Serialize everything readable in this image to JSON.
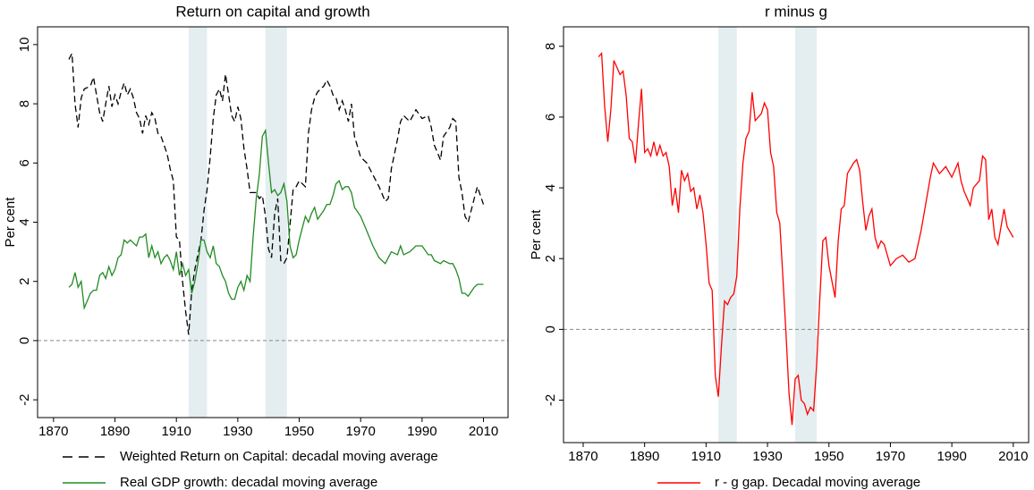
{
  "chart_data": [
    {
      "type": "line",
      "title": "Return on capital and growth",
      "ylabel": "Per cent",
      "xlim": [
        1864.8,
        2018
      ],
      "ylim": [
        -2.6,
        10.6
      ],
      "xticks": [
        1870,
        1890,
        1910,
        1930,
        1950,
        1970,
        1990,
        2010
      ],
      "yticks": [
        -2,
        0,
        2,
        4,
        6,
        8,
        10
      ],
      "reference_line": 0,
      "shaded_periods": [
        [
          1914,
          1920
        ],
        [
          1939,
          1946
        ]
      ],
      "shade_color": "#e4edf0",
      "x": [
        1875,
        1876,
        1877,
        1878,
        1879,
        1880,
        1882,
        1883,
        1884,
        1885,
        1886,
        1887,
        1888,
        1889,
        1890,
        1891,
        1892,
        1893,
        1894,
        1895,
        1896,
        1897,
        1898,
        1899,
        1900,
        1901,
        1902,
        1903,
        1904,
        1905,
        1906,
        1907,
        1908,
        1909,
        1910,
        1911,
        1912,
        1913,
        1914,
        1915,
        1916,
        1917,
        1918,
        1919,
        1920,
        1921,
        1922,
        1923,
        1924,
        1925,
        1926,
        1927,
        1928,
        1929,
        1930,
        1931,
        1932,
        1933,
        1934,
        1935,
        1936,
        1937,
        1938,
        1939,
        1940,
        1941,
        1942,
        1943,
        1944,
        1945,
        1946,
        1947,
        1948,
        1949,
        1950,
        1952,
        1953,
        1954,
        1955,
        1956,
        1958,
        1959,
        1960,
        1961,
        1962,
        1963,
        1964,
        1965,
        1966,
        1967,
        1968,
        1970,
        1972,
        1974,
        1976,
        1978,
        1979,
        1980,
        1982,
        1983,
        1984,
        1986,
        1988,
        1990,
        1992,
        1993,
        1994,
        1996,
        1997,
        1999,
        2000,
        2001,
        2002,
        2003,
        2004,
        2005,
        2007,
        2008,
        2010
      ],
      "series": [
        {
          "name": "Weighted Return on Capital: decadal moving average",
          "color": "#000000",
          "dash": "dashed",
          "values": [
            9.5,
            9.7,
            8.0,
            7.2,
            8.2,
            8.5,
            8.6,
            8.9,
            8.3,
            7.7,
            7.4,
            8.0,
            8.6,
            7.9,
            8.3,
            8.0,
            8.4,
            8.7,
            8.3,
            8.5,
            8.2,
            7.7,
            7.5,
            7.0,
            7.6,
            7.3,
            7.7,
            7.5,
            7.0,
            6.9,
            6.6,
            6.3,
            5.8,
            5.4,
            3.5,
            3.4,
            2.0,
            1.0,
            0.2,
            1.7,
            2.4,
            2.9,
            3.4,
            4.4,
            5.1,
            6.2,
            7.5,
            8.3,
            8.5,
            8.1,
            9.0,
            8.3,
            7.6,
            7.4,
            7.9,
            7.5,
            6.5,
            5.8,
            5.0,
            5.0,
            5.0,
            4.8,
            4.9,
            4.2,
            3.1,
            2.8,
            4.3,
            4.8,
            2.7,
            2.6,
            2.8,
            3.9,
            5.1,
            5.2,
            5.4,
            5.2,
            7.0,
            7.8,
            8.2,
            8.4,
            8.6,
            8.8,
            8.6,
            8.3,
            8.2,
            7.8,
            8.1,
            7.8,
            7.4,
            8.0,
            6.9,
            6.2,
            6.0,
            5.6,
            5.2,
            4.7,
            4.8,
            5.8,
            6.8,
            7.4,
            7.6,
            7.4,
            7.8,
            7.5,
            7.6,
            7.2,
            6.6,
            6.1,
            6.9,
            7.2,
            7.5,
            7.4,
            5.5,
            5.0,
            4.2,
            4.0,
            4.8,
            5.2,
            4.6
          ]
        },
        {
          "name": "Real GDP growth: decadal moving average",
          "color": "#228b22",
          "dash": "solid",
          "values": [
            1.8,
            1.9,
            2.3,
            1.8,
            2.0,
            1.1,
            1.6,
            1.7,
            1.7,
            2.2,
            2.3,
            2.1,
            2.5,
            2.2,
            2.4,
            2.8,
            2.9,
            3.4,
            3.3,
            3.4,
            3.3,
            3.2,
            3.5,
            3.5,
            3.6,
            2.8,
            3.2,
            2.8,
            3.0,
            2.6,
            2.8,
            2.9,
            2.7,
            2.4,
            3.0,
            2.2,
            2.6,
            2.2,
            2.4,
            1.6,
            2.0,
            2.6,
            3.4,
            3.4,
            3.0,
            2.8,
            3.2,
            2.6,
            2.5,
            2.2,
            2.0,
            1.6,
            1.4,
            1.4,
            1.8,
            2.0,
            1.7,
            2.2,
            2.0,
            3.5,
            4.8,
            5.6,
            6.9,
            7.1,
            6.0,
            5.0,
            5.1,
            4.9,
            5.0,
            5.3,
            4.7,
            3.2,
            2.8,
            2.9,
            3.4,
            4.2,
            4.0,
            4.3,
            4.5,
            4.1,
            4.4,
            4.6,
            4.6,
            4.9,
            5.3,
            5.4,
            5.1,
            5.2,
            5.2,
            5.0,
            4.5,
            4.2,
            3.7,
            3.2,
            2.8,
            2.6,
            2.8,
            3.0,
            2.9,
            3.2,
            2.9,
            3.0,
            3.2,
            3.2,
            2.9,
            2.9,
            2.7,
            2.6,
            2.7,
            2.6,
            2.6,
            2.4,
            2.1,
            1.6,
            1.6,
            1.5,
            1.8,
            1.9,
            1.9
          ]
        }
      ]
    },
    {
      "type": "line",
      "title": "r minus g",
      "ylabel": "Per cent",
      "xlim": [
        1863.6,
        2015
      ],
      "ylim": [
        -3.2,
        8.55
      ],
      "xticks": [
        1870,
        1890,
        1910,
        1930,
        1950,
        1970,
        1990,
        2010
      ],
      "yticks": [
        -2,
        0,
        2,
        4,
        6,
        8
      ],
      "reference_line": 0,
      "shaded_periods": [
        [
          1914,
          1920
        ],
        [
          1939,
          1946
        ]
      ],
      "shade_color": "#e4edf0",
      "x": [
        1875,
        1876,
        1877,
        1878,
        1879,
        1880,
        1882,
        1883,
        1884,
        1885,
        1886,
        1887,
        1888,
        1889,
        1890,
        1891,
        1892,
        1893,
        1894,
        1895,
        1896,
        1897,
        1898,
        1899,
        1900,
        1901,
        1902,
        1903,
        1904,
        1905,
        1906,
        1907,
        1908,
        1909,
        1910,
        1911,
        1912,
        1913,
        1914,
        1915,
        1916,
        1917,
        1918,
        1919,
        1920,
        1921,
        1922,
        1923,
        1924,
        1925,
        1926,
        1927,
        1928,
        1929,
        1930,
        1931,
        1932,
        1933,
        1934,
        1935,
        1936,
        1937,
        1938,
        1939,
        1940,
        1941,
        1942,
        1943,
        1944,
        1945,
        1946,
        1947,
        1948,
        1949,
        1950,
        1952,
        1953,
        1954,
        1955,
        1956,
        1958,
        1959,
        1960,
        1961,
        1962,
        1963,
        1964,
        1965,
        1966,
        1967,
        1968,
        1970,
        1972,
        1974,
        1976,
        1978,
        1979,
        1980,
        1982,
        1983,
        1984,
        1986,
        1988,
        1990,
        1992,
        1993,
        1994,
        1996,
        1997,
        1999,
        2000,
        2001,
        2002,
        2003,
        2004,
        2005,
        2007,
        2008,
        2010
      ],
      "series": [
        {
          "name": "r - g gap. Decadal moving average",
          "color": "#ff0000",
          "dash": "solid",
          "values": [
            7.7,
            7.8,
            6.3,
            5.3,
            6.2,
            7.6,
            7.2,
            7.3,
            6.6,
            5.4,
            5.3,
            4.7,
            5.8,
            6.8,
            5.0,
            5.1,
            4.9,
            5.3,
            4.9,
            5.2,
            4.9,
            5.0,
            4.6,
            3.5,
            4.0,
            3.3,
            4.5,
            4.2,
            4.4,
            3.9,
            4.0,
            3.4,
            3.8,
            3.3,
            2.4,
            1.3,
            1.1,
            -1.3,
            -1.9,
            -0.5,
            0.8,
            0.7,
            0.9,
            1.0,
            1.5,
            3.4,
            4.7,
            5.4,
            5.6,
            6.7,
            5.9,
            6.0,
            6.1,
            6.4,
            6.2,
            5.0,
            4.6,
            3.3,
            3.0,
            1.5,
            -0.1,
            -1.8,
            -2.7,
            -1.4,
            -1.3,
            -2.0,
            -2.1,
            -2.4,
            -2.2,
            -2.3,
            -1.0,
            0.8,
            2.5,
            2.6,
            1.8,
            0.9,
            2.5,
            3.4,
            3.5,
            4.4,
            4.7,
            4.8,
            4.5,
            3.6,
            2.8,
            3.2,
            3.4,
            2.6,
            2.3,
            2.5,
            2.4,
            1.8,
            2.0,
            2.1,
            1.9,
            2.0,
            2.4,
            2.8,
            3.8,
            4.3,
            4.7,
            4.4,
            4.6,
            4.3,
            4.7,
            4.2,
            3.9,
            3.5,
            4.0,
            4.2,
            4.9,
            4.8,
            3.1,
            3.4,
            2.6,
            2.4,
            3.4,
            2.9,
            2.6
          ]
        }
      ]
    }
  ]
}
